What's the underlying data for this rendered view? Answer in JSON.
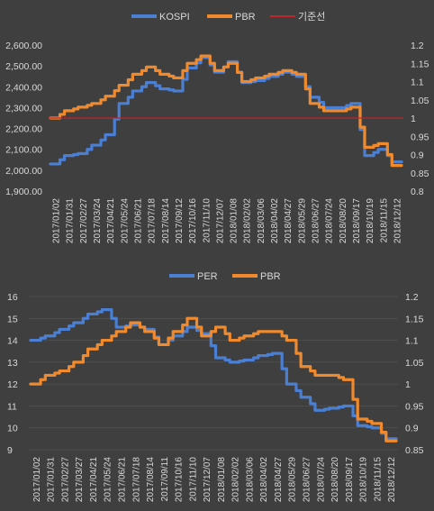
{
  "colors": {
    "background": "#3f3f3f",
    "grid": "#5a5a5a",
    "text": "#d9d9d9",
    "blue": "#4a7fd4",
    "orange": "#f08a2c",
    "baseline": "#c0262c"
  },
  "chart_data": [
    {
      "type": "line",
      "dual_axis": true,
      "legend": {
        "position": "top",
        "entries": [
          {
            "label": "KOSPI",
            "color": "#4a7fd4"
          },
          {
            "label": "PBR",
            "color": "#f08a2c"
          },
          {
            "label": "기준선",
            "color": "#c0262c"
          }
        ]
      },
      "y_left": {
        "min": 1900,
        "max": 2600,
        "ticks": [
          "1,900.00",
          "2,000.00",
          "2,100.00",
          "2,200.00",
          "2,300.00",
          "2,400.00",
          "2,500.00",
          "2,600.00"
        ]
      },
      "y_right": {
        "min": 0.8,
        "max": 1.2,
        "ticks": [
          "0.8",
          "0.85",
          "0.9",
          "0.95",
          "1",
          "1.05",
          "1.1",
          "1.15",
          "1.2"
        ]
      },
      "x_labels": [
        "2017/01/02",
        "2017/01/31",
        "2017/02/27",
        "2017/03/24",
        "2017/04/21",
        "2017/05/24",
        "2017/06/21",
        "2017/07/18",
        "2017/08/14",
        "2017/09/12",
        "2017/10/16",
        "2017/11/10",
        "2017/12/07",
        "2018/01/08",
        "2018/02/02",
        "2018/03/06",
        "2018/04/02",
        "2018/04/27",
        "2018/05/29",
        "2018/06/27",
        "2018/07/24",
        "2018/08/20",
        "2018/09/17",
        "2018/10/19",
        "2018/11/15",
        "2018/12/12"
      ],
      "series": [
        {
          "name": "KOSPI",
          "axis": "left",
          "color": "#4a7fd4",
          "values": [
            2030,
            2070,
            2080,
            2120,
            2170,
            2320,
            2380,
            2420,
            2390,
            2380,
            2490,
            2540,
            2470,
            2520,
            2420,
            2430,
            2450,
            2470,
            2450,
            2350,
            2300,
            2300,
            2320,
            2070,
            2100,
            2040
          ]
        },
        {
          "name": "PBR",
          "axis": "right",
          "color": "#f08a2c",
          "values": [
            1.0,
            1.02,
            1.03,
            1.04,
            1.06,
            1.09,
            1.12,
            1.14,
            1.12,
            1.11,
            1.15,
            1.17,
            1.13,
            1.15,
            1.1,
            1.11,
            1.12,
            1.13,
            1.12,
            1.04,
            1.02,
            1.02,
            1.03,
            0.92,
            0.93,
            0.87
          ]
        },
        {
          "name": "기준선",
          "axis": "right",
          "color": "#c0262c",
          "values": [
            1,
            1,
            1,
            1,
            1,
            1,
            1,
            1,
            1,
            1,
            1,
            1,
            1,
            1,
            1,
            1,
            1,
            1,
            1,
            1,
            1,
            1,
            1,
            1,
            1,
            1
          ]
        }
      ]
    },
    {
      "type": "line",
      "dual_axis": true,
      "legend": {
        "position": "top",
        "entries": [
          {
            "label": "PER",
            "color": "#4a7fd4"
          },
          {
            "label": "PBR",
            "color": "#f08a2c"
          }
        ]
      },
      "y_left": {
        "min": 9,
        "max": 16,
        "ticks": [
          "9",
          "10",
          "11",
          "12",
          "13",
          "14",
          "15",
          "16"
        ]
      },
      "y_right": {
        "min": 0.85,
        "max": 1.2,
        "ticks": [
          "0.85",
          "0.9",
          "0.95",
          "1",
          "1.05",
          "1.1",
          "1.15",
          "1.2"
        ]
      },
      "x_labels": [
        "2017/01/02",
        "2017/01/31",
        "2017/02/27",
        "2017/03/27",
        "2017/04/21",
        "2017/05/24",
        "2017/06/21",
        "2017/07/18",
        "2017/08/14",
        "2017/09/11",
        "2017/10/16",
        "2017/11/10",
        "2017/12/07",
        "2018/01/08",
        "2018/02/02",
        "2018/03/06",
        "2018/04/02",
        "2018/04/27",
        "2018/05/29",
        "2018/06/27",
        "2018/07/24",
        "2018/08/20",
        "2018/09/17",
        "2018/10/19",
        "2018/11/15",
        "2018/12/12"
      ],
      "series": [
        {
          "name": "PER",
          "axis": "left",
          "color": "#4a7fd4",
          "values": [
            14.0,
            14.2,
            14.5,
            14.8,
            15.2,
            15.4,
            14.6,
            14.7,
            14.5,
            13.8,
            14.2,
            14.6,
            14.3,
            13.2,
            13.0,
            13.1,
            13.3,
            13.4,
            12.0,
            11.4,
            10.8,
            10.9,
            11.0,
            10.1,
            10.0,
            9.5
          ]
        },
        {
          "name": "PBR",
          "axis": "right",
          "color": "#f08a2c",
          "values": [
            1.0,
            1.02,
            1.03,
            1.05,
            1.08,
            1.1,
            1.12,
            1.14,
            1.12,
            1.09,
            1.12,
            1.15,
            1.11,
            1.13,
            1.1,
            1.11,
            1.12,
            1.12,
            1.1,
            1.04,
            1.02,
            1.02,
            1.01,
            0.92,
            0.91,
            0.87
          ]
        }
      ]
    }
  ]
}
